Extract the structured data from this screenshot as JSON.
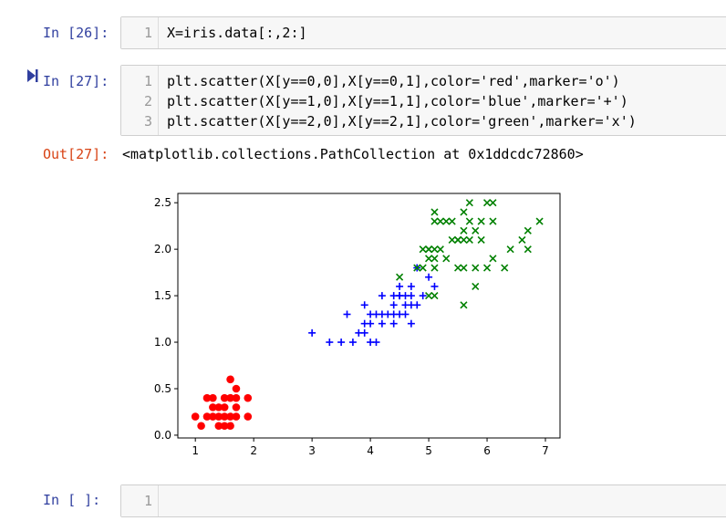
{
  "cells": [
    {
      "prompt": "In  [26]:",
      "lines": [
        {
          "num": "1",
          "code": "X=iris.data[:,2:]"
        }
      ]
    },
    {
      "prompt": "In  [27]:",
      "lines": [
        {
          "num": "1",
          "code": "plt.scatter(X[y==0,0],X[y==0,1],color='red',marker='o')"
        },
        {
          "num": "2",
          "code": "plt.scatter(X[y==1,0],X[y==1,1],color='blue',marker='+')"
        },
        {
          "num": "3",
          "code": "plt.scatter(X[y==2,0],X[y==2,1],color='green',marker='x')"
        }
      ],
      "output_prompt": "Out[27]:",
      "output_text": "<matplotlib.collections.PathCollection at 0x1ddcdc72860>"
    },
    {
      "prompt": "In  [ ]:",
      "lines": [
        {
          "num": "1",
          "code": ""
        }
      ]
    }
  ],
  "chart_data": {
    "type": "scatter",
    "xlim": [
      0.7,
      7.25
    ],
    "ylim": [
      -0.03,
      2.6
    ],
    "xticks": [
      "1",
      "2",
      "3",
      "4",
      "5",
      "6",
      "7"
    ],
    "yticks": [
      "0.0",
      "0.5",
      "1.0",
      "1.5",
      "2.0",
      "2.5"
    ],
    "xtick_values": [
      1,
      2,
      3,
      4,
      5,
      6,
      7
    ],
    "ytick_values": [
      0,
      0.5,
      1.0,
      1.5,
      2.0,
      2.5
    ],
    "series": [
      {
        "color": "#ff0000",
        "marker": "o",
        "points": [
          [
            1.0,
            0.2
          ],
          [
            1.1,
            0.1
          ],
          [
            1.2,
            0.2
          ],
          [
            1.3,
            0.2
          ],
          [
            1.3,
            0.3
          ],
          [
            1.3,
            0.4
          ],
          [
            1.4,
            0.1
          ],
          [
            1.4,
            0.2
          ],
          [
            1.4,
            0.3
          ],
          [
            1.5,
            0.1
          ],
          [
            1.5,
            0.2
          ],
          [
            1.5,
            0.3
          ],
          [
            1.5,
            0.4
          ],
          [
            1.6,
            0.2
          ],
          [
            1.6,
            0.4
          ],
          [
            1.6,
            0.6
          ],
          [
            1.7,
            0.2
          ],
          [
            1.7,
            0.3
          ],
          [
            1.7,
            0.4
          ],
          [
            1.7,
            0.5
          ],
          [
            1.9,
            0.2
          ],
          [
            1.9,
            0.4
          ],
          [
            1.2,
            0.4
          ],
          [
            1.6,
            0.1
          ]
        ]
      },
      {
        "color": "#0000ff",
        "marker": "+",
        "points": [
          [
            3.0,
            1.1
          ],
          [
            3.3,
            1.0
          ],
          [
            3.5,
            1.0
          ],
          [
            3.6,
            1.3
          ],
          [
            3.7,
            1.0
          ],
          [
            3.8,
            1.1
          ],
          [
            3.9,
            1.1
          ],
          [
            3.9,
            1.2
          ],
          [
            3.9,
            1.4
          ],
          [
            4.0,
            1.0
          ],
          [
            4.0,
            1.2
          ],
          [
            4.0,
            1.3
          ],
          [
            4.1,
            1.0
          ],
          [
            4.1,
            1.3
          ],
          [
            4.2,
            1.2
          ],
          [
            4.2,
            1.3
          ],
          [
            4.2,
            1.5
          ],
          [
            4.3,
            1.3
          ],
          [
            4.4,
            1.2
          ],
          [
            4.4,
            1.3
          ],
          [
            4.4,
            1.4
          ],
          [
            4.5,
            1.3
          ],
          [
            4.5,
            1.5
          ],
          [
            4.5,
            1.6
          ],
          [
            4.6,
            1.3
          ],
          [
            4.6,
            1.4
          ],
          [
            4.6,
            1.5
          ],
          [
            4.7,
            1.2
          ],
          [
            4.7,
            1.4
          ],
          [
            4.7,
            1.5
          ],
          [
            4.7,
            1.6
          ],
          [
            4.8,
            1.4
          ],
          [
            4.8,
            1.8
          ],
          [
            4.9,
            1.5
          ],
          [
            5.0,
            1.7
          ],
          [
            5.1,
            1.6
          ],
          [
            4.4,
            1.5
          ],
          [
            4.5,
            1.5
          ]
        ]
      },
      {
        "color": "#008000",
        "marker": "x",
        "points": [
          [
            4.5,
            1.7
          ],
          [
            4.8,
            1.8
          ],
          [
            4.9,
            1.8
          ],
          [
            5.0,
            1.5
          ],
          [
            5.0,
            1.9
          ],
          [
            5.0,
            2.0
          ],
          [
            5.1,
            1.5
          ],
          [
            5.1,
            1.8
          ],
          [
            5.1,
            1.9
          ],
          [
            5.1,
            2.0
          ],
          [
            5.1,
            2.3
          ],
          [
            5.1,
            2.4
          ],
          [
            5.2,
            2.0
          ],
          [
            5.2,
            2.3
          ],
          [
            5.3,
            1.9
          ],
          [
            5.3,
            2.3
          ],
          [
            5.4,
            2.1
          ],
          [
            5.4,
            2.3
          ],
          [
            5.5,
            1.8
          ],
          [
            5.5,
            2.1
          ],
          [
            5.6,
            1.4
          ],
          [
            5.6,
            1.8
          ],
          [
            5.6,
            2.1
          ],
          [
            5.6,
            2.2
          ],
          [
            5.6,
            2.4
          ],
          [
            5.7,
            2.1
          ],
          [
            5.7,
            2.3
          ],
          [
            5.7,
            2.5
          ],
          [
            5.8,
            1.6
          ],
          [
            5.8,
            1.8
          ],
          [
            5.8,
            2.2
          ],
          [
            5.9,
            2.1
          ],
          [
            5.9,
            2.3
          ],
          [
            6.0,
            1.8
          ],
          [
            6.0,
            2.5
          ],
          [
            6.1,
            1.9
          ],
          [
            6.1,
            2.3
          ],
          [
            6.1,
            2.5
          ],
          [
            6.3,
            1.8
          ],
          [
            6.4,
            2.0
          ],
          [
            6.6,
            2.1
          ],
          [
            6.7,
            2.0
          ],
          [
            6.7,
            2.2
          ],
          [
            6.9,
            2.3
          ],
          [
            4.9,
            2.0
          ],
          [
            5.0,
            2.0
          ],
          [
            5.5,
            2.1
          ]
        ]
      }
    ]
  }
}
